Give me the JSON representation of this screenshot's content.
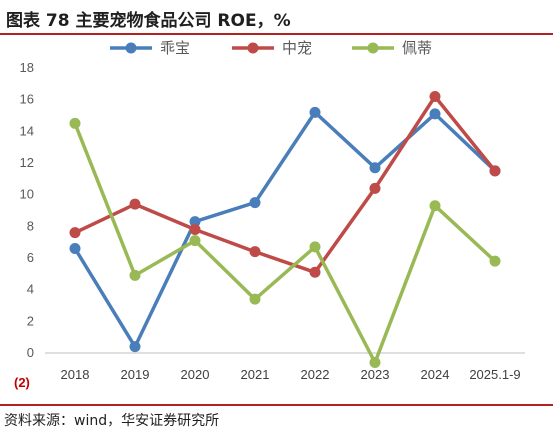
{
  "title": "图表 78 主要宠物食品公司 ROE，%",
  "source": "资料来源：wind，华安证券研究所",
  "chart_data": {
    "type": "line",
    "categories": [
      "2018",
      "2019",
      "2020",
      "2021",
      "2022",
      "2023",
      "2024",
      "2025.1-9"
    ],
    "y_ticks": [
      "18",
      "16",
      "14",
      "12",
      "10",
      "8",
      "6",
      "4",
      "2",
      "0",
      "(2)"
    ],
    "ylim": [
      -2,
      18
    ],
    "legend_position": "top",
    "grid": false,
    "series": [
      {
        "name": "乖宝",
        "color": "#4a7ebb",
        "values": [
          6.6,
          0.4,
          8.3,
          9.5,
          15.2,
          11.7,
          15.1,
          11.5
        ]
      },
      {
        "name": "中宠",
        "color": "#be4b48",
        "values": [
          7.6,
          9.4,
          7.8,
          6.4,
          5.1,
          10.4,
          16.2,
          11.5
        ]
      },
      {
        "name": "佩蒂",
        "color": "#98b954",
        "values": [
          14.5,
          4.9,
          7.1,
          3.4,
          6.7,
          -0.6,
          9.3,
          5.8
        ]
      }
    ]
  }
}
